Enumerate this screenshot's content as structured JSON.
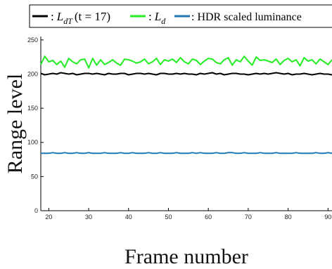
{
  "chart_data": {
    "type": "line",
    "xlabel": "Frame number",
    "ylabel": "Range level",
    "xlim": [
      18,
      91
    ],
    "ylim": [
      0,
      255
    ],
    "xticks": [
      20,
      30,
      40,
      50,
      60,
      70,
      80,
      90
    ],
    "yticks": [
      0,
      50,
      100,
      150,
      200,
      250
    ],
    "grid": false,
    "legend_position": "top",
    "legend": {
      "entry1": {
        "prefix": ":",
        "symbol": "L",
        "subscript": "dT",
        "suffix": "(t = 17)"
      },
      "entry2": {
        "prefix": ":",
        "symbol": "L",
        "subscript": "d"
      },
      "entry3": {
        "text": ": HDR scaled luminance"
      }
    },
    "x": [
      18,
      19,
      20,
      21,
      22,
      23,
      24,
      25,
      26,
      27,
      28,
      29,
      30,
      31,
      32,
      33,
      34,
      35,
      36,
      37,
      38,
      39,
      40,
      41,
      42,
      43,
      44,
      45,
      46,
      47,
      48,
      49,
      50,
      51,
      52,
      53,
      54,
      55,
      56,
      57,
      58,
      59,
      60,
      61,
      62,
      63,
      64,
      65,
      66,
      67,
      68,
      69,
      70,
      71,
      72,
      73,
      74,
      75,
      76,
      77,
      78,
      79,
      80,
      81,
      82,
      83,
      84,
      85,
      86,
      87,
      88,
      89,
      90,
      91
    ],
    "series": [
      {
        "color": "#000000",
        "values": [
          201,
          199,
          200,
          201,
          200,
          202,
          201,
          200,
          201,
          199,
          200,
          201,
          201,
          200,
          201,
          200,
          199,
          201,
          200,
          200,
          201,
          201,
          199,
          200,
          201,
          201,
          200,
          201,
          200,
          199,
          201,
          201,
          200,
          200,
          201,
          200,
          201,
          200,
          200,
          199,
          201,
          200,
          201,
          202,
          200,
          201,
          199,
          200,
          201,
          201,
          200,
          200,
          199,
          200,
          201,
          200,
          201,
          200,
          201,
          202,
          201,
          200,
          201,
          199,
          200,
          200,
          201,
          200,
          199,
          200,
          201,
          200,
          200,
          199
        ]
      },
      {
        "color": "#22ee22",
        "values": [
          214,
          226,
          218,
          220,
          214,
          219,
          210,
          223,
          218,
          215,
          221,
          222,
          209,
          223,
          213,
          221,
          214,
          217,
          221,
          216,
          213,
          222,
          221,
          219,
          216,
          218,
          222,
          215,
          218,
          223,
          214,
          221,
          219,
          222,
          217,
          224,
          218,
          215,
          222,
          220,
          214,
          219,
          223,
          222,
          217,
          215,
          221,
          224,
          213,
          221,
          218,
          226,
          219,
          213,
          225,
          220,
          221,
          219,
          217,
          222,
          214,
          220,
          223,
          218,
          221,
          212,
          224,
          219,
          221,
          215,
          222,
          218,
          214,
          221
        ]
      },
      {
        "color": "#1f77b4",
        "values": [
          84,
          84,
          84,
          85,
          84,
          84,
          85,
          84,
          84,
          85,
          84,
          84,
          85,
          84,
          84,
          84,
          85,
          84,
          84,
          84,
          85,
          84,
          84,
          85,
          84,
          84,
          84,
          85,
          84,
          84,
          85,
          84,
          84,
          84,
          85,
          84,
          84,
          84,
          85,
          84,
          85,
          84,
          84,
          84,
          85,
          84,
          84,
          85,
          85,
          84,
          84,
          85,
          84,
          84,
          84,
          85,
          84,
          84,
          84,
          85,
          84,
          84,
          84,
          84,
          85,
          84,
          84,
          84,
          84,
          85,
          84,
          84,
          85,
          84
        ]
      }
    ]
  }
}
